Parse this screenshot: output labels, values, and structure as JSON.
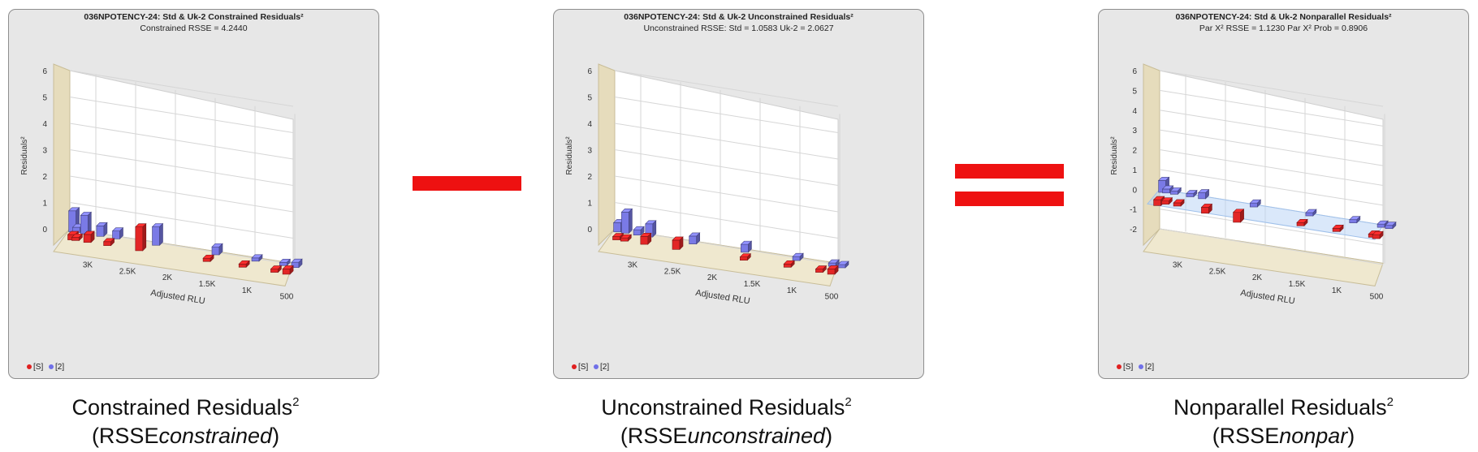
{
  "operators": {
    "minus": "minus",
    "equals": "equals"
  },
  "legend": {
    "s_label": "[S]",
    "two_label": "[2]",
    "s_color": "#e02020",
    "two_color": "#7070e8"
  },
  "series_colors": {
    "S": "#e32626",
    "Uk2": "#7a7ae6"
  },
  "panels": [
    {
      "title": "036NPOTENCY-24: Std & Uk-2  Constrained Residuals²",
      "subtitle": "Constrained RSSE = 4.2440",
      "caption": "Constrained Residuals",
      "caption_sup": "2",
      "caption_paren_open": "(RSSE",
      "caption_em": "constrained",
      "caption_paren_close": ")"
    },
    {
      "title": "036NPOTENCY-24: Std & Uk-2  Unconstrained Residuals²",
      "subtitle": "Unconstrained RSSE: Std = 1.0583  Uk-2 = 2.0627",
      "caption": "Unconstrained Residuals",
      "caption_sup": "2",
      "caption_paren_open": "(RSSE",
      "caption_em": "unconstrained",
      "caption_paren_close": ")"
    },
    {
      "title": "036NPOTENCY-24: Std & Uk-2  Nonparallel Residuals²",
      "subtitle": "Par X² RSSE = 1.1230 Par X² Prob = 0.8906",
      "caption": "Nonparallel Residuals",
      "caption_sup": "2",
      "caption_paren_open": "(RSSE",
      "caption_em": "nonpar",
      "caption_paren_close": ")"
    }
  ],
  "chart_data": [
    {
      "type": "bar3d",
      "title": "036NPOTENCY-24: Std & Uk-2  Constrained Residuals²",
      "subtitle": "Constrained RSSE = 4.2440",
      "ylabel": "Residuals²",
      "xlabel": "Adjusted RLU",
      "ylim": [
        0,
        6
      ],
      "yticks": [
        "0",
        "1",
        "2",
        "3",
        "4",
        "5",
        "6"
      ],
      "xticks": [
        "3K",
        "2.5K",
        "2K",
        "1.5K",
        "1K",
        "500"
      ],
      "series": [
        {
          "name": "[S]",
          "points": [
            [
              3250,
              0.2
            ],
            [
              3200,
              0.1
            ],
            [
              3050,
              0.3
            ],
            [
              2800,
              0.15
            ],
            [
              2400,
              0.9
            ],
            [
              1550,
              0.05
            ],
            [
              1100,
              0.1
            ],
            [
              700,
              0.1
            ],
            [
              550,
              0.2
            ]
          ]
        },
        {
          "name": "[2]",
          "points": [
            [
              3300,
              0.8
            ],
            [
              3250,
              0.2
            ],
            [
              3150,
              0.7
            ],
            [
              2950,
              0.4
            ],
            [
              2750,
              0.3
            ],
            [
              2250,
              0.7
            ],
            [
              1500,
              0.3
            ],
            [
              1000,
              0.1
            ],
            [
              650,
              0.1
            ],
            [
              500,
              0.2
            ]
          ]
        }
      ]
    },
    {
      "type": "bar3d",
      "title": "036NPOTENCY-24: Std & Uk-2  Unconstrained Residuals²",
      "subtitle": "Unconstrained RSSE: Std = 1.0583  Uk-2 = 2.0627",
      "ylabel": "Residuals²",
      "xlabel": "Adjusted RLU",
      "ylim": [
        0,
        6
      ],
      "yticks": [
        "0",
        "1",
        "2",
        "3",
        "4",
        "5",
        "6"
      ],
      "xticks": [
        "3K",
        "2.5K",
        "2K",
        "1.5K",
        "1K",
        "500"
      ],
      "series": [
        {
          "name": "[S]",
          "points": [
            [
              3250,
              0.1
            ],
            [
              3150,
              0.1
            ],
            [
              2900,
              0.3
            ],
            [
              2500,
              0.35
            ],
            [
              1650,
              0.05
            ],
            [
              1100,
              0.05
            ],
            [
              700,
              0.05
            ],
            [
              550,
              0.2
            ]
          ]
        },
        {
          "name": "[2]",
          "points": [
            [
              3300,
              0.35
            ],
            [
              3200,
              0.8
            ],
            [
              3050,
              0.2
            ],
            [
              2900,
              0.5
            ],
            [
              2350,
              0.3
            ],
            [
              1700,
              0.3
            ],
            [
              1050,
              0.15
            ],
            [
              600,
              0.1
            ],
            [
              480,
              0.1
            ]
          ]
        }
      ]
    },
    {
      "type": "bar3d",
      "title": "036NPOTENCY-24: Std & Uk-2  Nonparallel Residuals²",
      "subtitle": "Par X² RSSE = 1.1230 Par X² Prob = 0.8906",
      "ylabel": "Residuals²",
      "xlabel": "Adjusted RLU",
      "ylim": [
        -2,
        6
      ],
      "yticks": [
        "-2",
        "-1",
        "0",
        "1",
        "2",
        "3",
        "4",
        "5",
        "6"
      ],
      "xticks": [
        "3K",
        "2.5K",
        "2K",
        "1.5K",
        "1K",
        "500"
      ],
      "series": [
        {
          "name": "[S]",
          "points": [
            [
              3300,
              -0.3
            ],
            [
              3200,
              -0.1
            ],
            [
              3050,
              -0.05
            ],
            [
              2700,
              -0.3
            ],
            [
              2300,
              -0.5
            ],
            [
              1500,
              -0.05
            ],
            [
              1050,
              -0.1
            ],
            [
              600,
              -0.1
            ],
            [
              550,
              -0.2
            ]
          ]
        },
        {
          "name": "[2]",
          "points": [
            [
              3300,
              0.6
            ],
            [
              3250,
              0.2
            ],
            [
              3150,
              0.1
            ],
            [
              2950,
              0.05
            ],
            [
              2800,
              0.3
            ],
            [
              2150,
              0.2
            ],
            [
              1450,
              0.05
            ],
            [
              900,
              0.1
            ],
            [
              550,
              0.05
            ],
            [
              450,
              0.1
            ]
          ]
        }
      ]
    }
  ]
}
